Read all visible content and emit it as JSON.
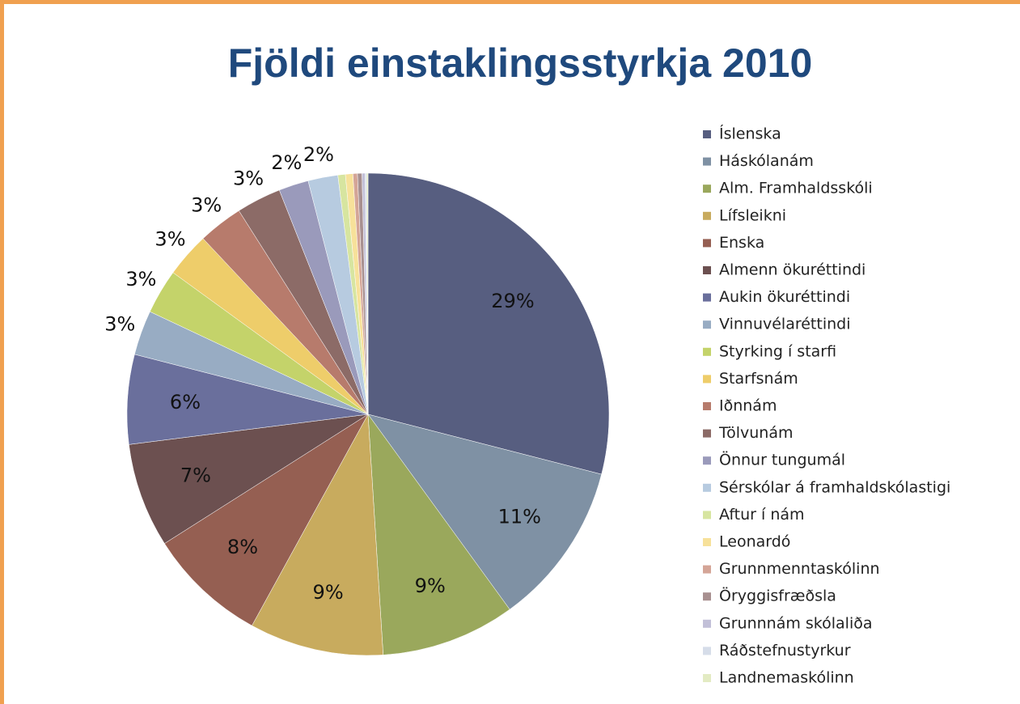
{
  "chart_data": {
    "type": "pie",
    "title": "Fjöldi einstaklingsstyrkja 2010",
    "categories": [
      "Íslenska",
      "Háskólanám",
      "Alm. Framhaldsskóli",
      "Lífsleikni",
      "Enska",
      "Almenn ökuréttindi",
      "Aukin ökuréttindi",
      "Vinnuvélaréttindi",
      "Styrking í starfi",
      "Starfsnám",
      "Iðnnám",
      "Tölvunám",
      "Önnur tungumál",
      "Sérskólar á framhaldskólastigi",
      "Aftur í nám",
      "Leonardó",
      "Grunnmenntaskólinn",
      "Öryggisfræðsla",
      "Grunnnám skólaliða",
      "Ráðstefnustyrkur",
      "Landnemaskólinn"
    ],
    "values": [
      29,
      11,
      9,
      9,
      8,
      7,
      6,
      3,
      3,
      3,
      3,
      3,
      2,
      2,
      0.5,
      0.5,
      0.3,
      0.3,
      0.2,
      0.1,
      0.1
    ],
    "value_labels": [
      "29%",
      "11%",
      "9%",
      "9%",
      "8%",
      "7%",
      "6%",
      "3%",
      "3%",
      "3%",
      "3%",
      "3%",
      "2%",
      "2%",
      null,
      null,
      null,
      null,
      null,
      null,
      null
    ],
    "colors": [
      "#575e80",
      "#7f91a4",
      "#9aa85c",
      "#c8ab5e",
      "#955f52",
      "#6c5050",
      "#6a6f9c",
      "#98acc3",
      "#c4d36a",
      "#eecd6a",
      "#b77b6c",
      "#8c6b67",
      "#9a9abb",
      "#b7cbe0",
      "#d7e5a0",
      "#f7e19a",
      "#d4a597",
      "#a89090",
      "#c2c0d8",
      "#d6dde9",
      "#e3ebc3"
    ],
    "legend": "right"
  }
}
